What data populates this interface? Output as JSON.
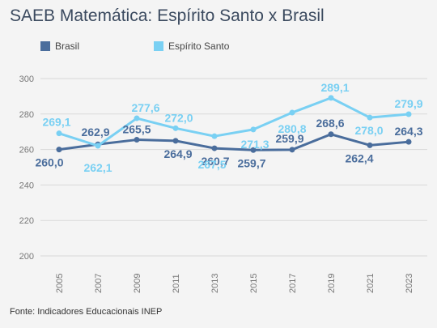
{
  "title": "SAEB Matemática: Espírito Santo x Brasil",
  "source": "Fonte: Indicadores Educacionais INEP",
  "colors": {
    "brasil": "#4a6d9c",
    "espirito_santo": "#79d0f3",
    "grid": "#d9d9d9",
    "tick": "#777777"
  },
  "chart_data": {
    "type": "line",
    "title": "SAEB Matemática: Espírito Santo x Brasil",
    "x": [
      "2005",
      "2007",
      "2009",
      "2011",
      "2013",
      "2015",
      "2017",
      "2019",
      "2021",
      "2023"
    ],
    "series": [
      {
        "name": "Brasil",
        "values": [
          260.0,
          262.9,
          265.5,
          264.9,
          260.7,
          259.7,
          259.9,
          268.6,
          262.4,
          264.3
        ],
        "labels": [
          "260,0",
          "262,9",
          "265,5",
          "264,9",
          "260,7",
          "259,7",
          "259,9",
          "268,6",
          "262,4",
          "264,3"
        ]
      },
      {
        "name": "Espírito Santo",
        "values": [
          269.1,
          262.1,
          277.6,
          272.0,
          267.5,
          271.3,
          280.8,
          289.1,
          278.0,
          279.9
        ],
        "labels": [
          "269,1",
          "262,1",
          "277,6",
          "272,0",
          "267,5",
          "271,3",
          "280,8",
          "289,1",
          "278,0",
          "279,9"
        ]
      }
    ],
    "yticks": [
      "200",
      "220",
      "240",
      "260",
      "280",
      "300"
    ],
    "ylim": [
      200,
      300
    ],
    "grid": true,
    "legend": "top-left"
  }
}
